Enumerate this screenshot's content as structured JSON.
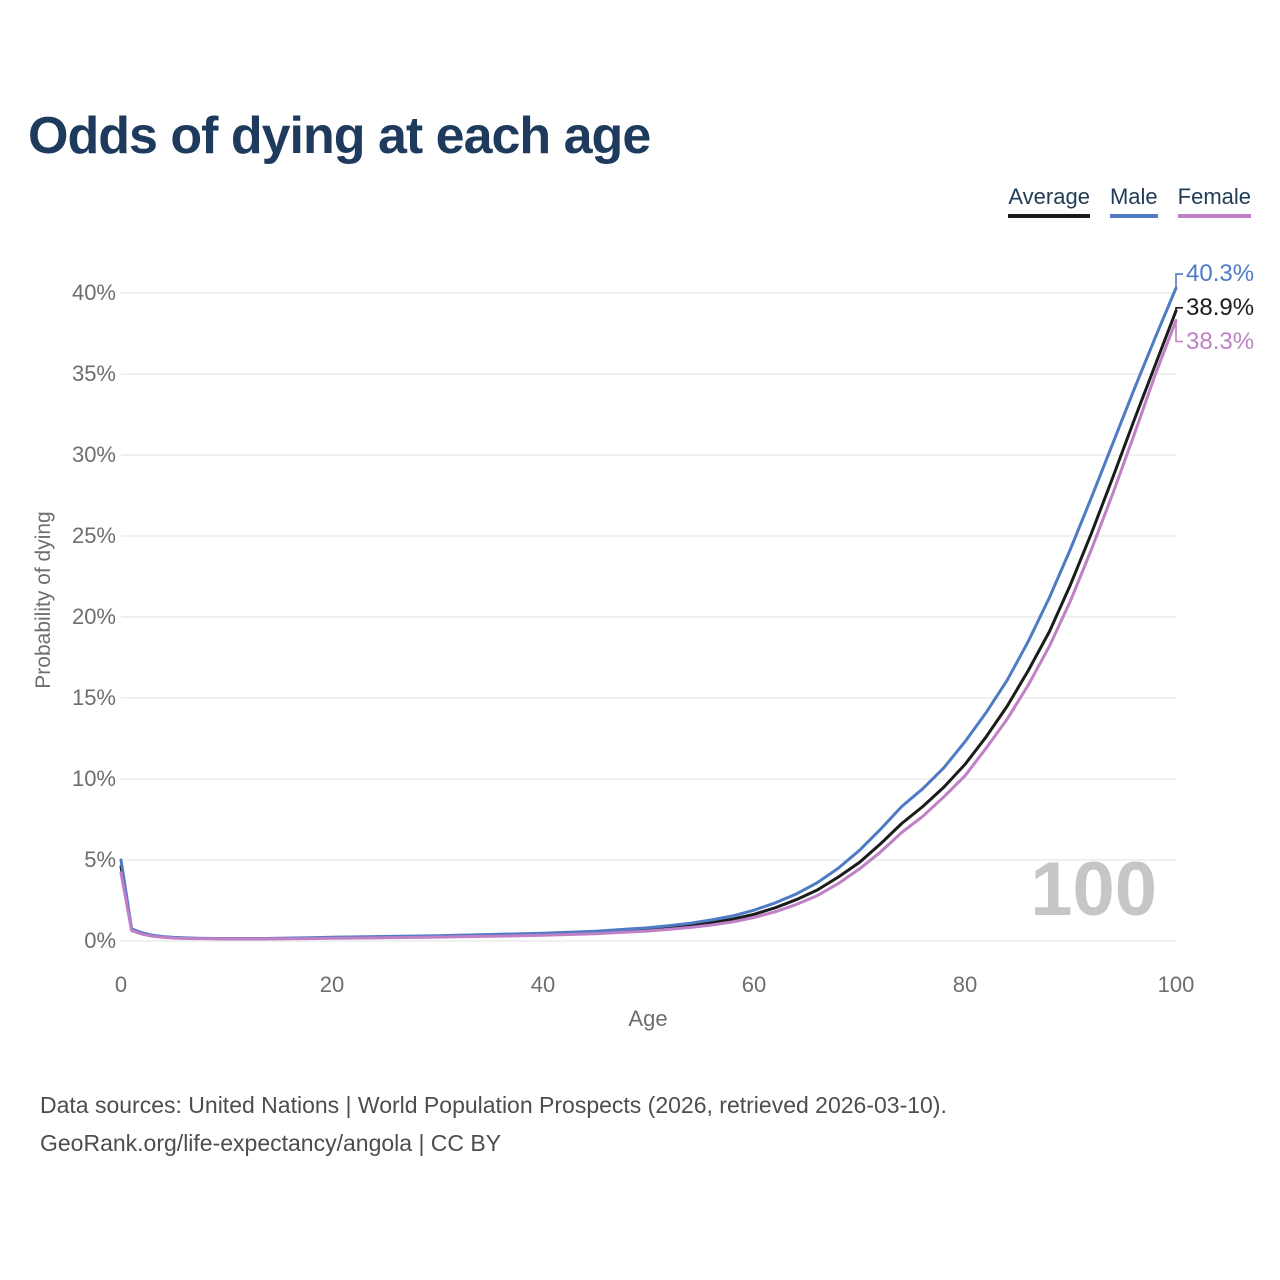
{
  "title": "Odds of dying at each age",
  "legend": {
    "items": [
      {
        "label": "Average",
        "color": "#1c1c1c"
      },
      {
        "label": "Male",
        "color": "#4e7bc4"
      },
      {
        "label": "Female",
        "color": "#bf80c6"
      }
    ]
  },
  "y_axis": {
    "label": "Probability of dying",
    "ticks": [
      "40%",
      "35%",
      "30%",
      "25%",
      "20%",
      "15%",
      "10%",
      "5%",
      "0%"
    ]
  },
  "x_axis": {
    "label": "Age",
    "ticks": [
      "0",
      "20",
      "40",
      "60",
      "80",
      "100"
    ]
  },
  "watermark": "100",
  "footer": {
    "line1": "Data sources: United Nations | World Population Prospects (2026, retrieved 2026-03-10).",
    "line2": "GeoRank.org/life-expectancy/angola | CC BY"
  },
  "chart_data": {
    "type": "line",
    "title": "Odds of dying at each age",
    "xlabel": "Age",
    "ylabel": "Probability of dying",
    "units": "percent",
    "xlim": [
      0,
      100
    ],
    "ylim": [
      0,
      40
    ],
    "grid": "horizontal",
    "legend_position": "top-right",
    "x": [
      0,
      1,
      2,
      3,
      4,
      5,
      7,
      10,
      13,
      15,
      18,
      20,
      25,
      30,
      35,
      40,
      45,
      50,
      52,
      54,
      56,
      58,
      60,
      62,
      64,
      66,
      68,
      70,
      72,
      74,
      76,
      78,
      80,
      82,
      84,
      86,
      88,
      90,
      92,
      94,
      96,
      98,
      100
    ],
    "series": [
      {
        "name": "Average",
        "color": "#1c1c1c",
        "end_label": "38.9%",
        "values": [
          4.6,
          0.7,
          0.46,
          0.32,
          0.25,
          0.2,
          0.16,
          0.14,
          0.14,
          0.15,
          0.17,
          0.2,
          0.24,
          0.28,
          0.34,
          0.41,
          0.52,
          0.71,
          0.82,
          0.96,
          1.13,
          1.35,
          1.65,
          2.05,
          2.55,
          3.15,
          3.95,
          4.85,
          6.0,
          7.25,
          8.3,
          9.5,
          10.9,
          12.6,
          14.5,
          16.7,
          19.1,
          22.0,
          25.2,
          28.6,
          32.1,
          35.5,
          38.9
        ]
      },
      {
        "name": "Male",
        "color": "#4e7bc4",
        "end_label": "40.3%",
        "values": [
          5.0,
          0.75,
          0.5,
          0.35,
          0.27,
          0.22,
          0.17,
          0.15,
          0.15,
          0.17,
          0.2,
          0.23,
          0.28,
          0.33,
          0.4,
          0.48,
          0.6,
          0.82,
          0.95,
          1.1,
          1.3,
          1.55,
          1.9,
          2.35,
          2.9,
          3.6,
          4.5,
          5.6,
          6.9,
          8.3,
          9.4,
          10.7,
          12.3,
          14.1,
          16.1,
          18.5,
          21.2,
          24.2,
          27.4,
          30.7,
          34.0,
          37.2,
          40.3
        ]
      },
      {
        "name": "Female",
        "color": "#bf80c6",
        "end_label": "38.3%",
        "values": [
          4.2,
          0.64,
          0.42,
          0.29,
          0.23,
          0.18,
          0.15,
          0.13,
          0.13,
          0.14,
          0.15,
          0.17,
          0.2,
          0.24,
          0.29,
          0.35,
          0.45,
          0.62,
          0.72,
          0.84,
          0.99,
          1.18,
          1.45,
          1.8,
          2.25,
          2.8,
          3.55,
          4.45,
          5.5,
          6.7,
          7.7,
          8.9,
          10.2,
          11.9,
          13.7,
          15.8,
          18.2,
          21.0,
          24.2,
          27.6,
          31.2,
          34.9,
          38.3
        ]
      }
    ]
  }
}
